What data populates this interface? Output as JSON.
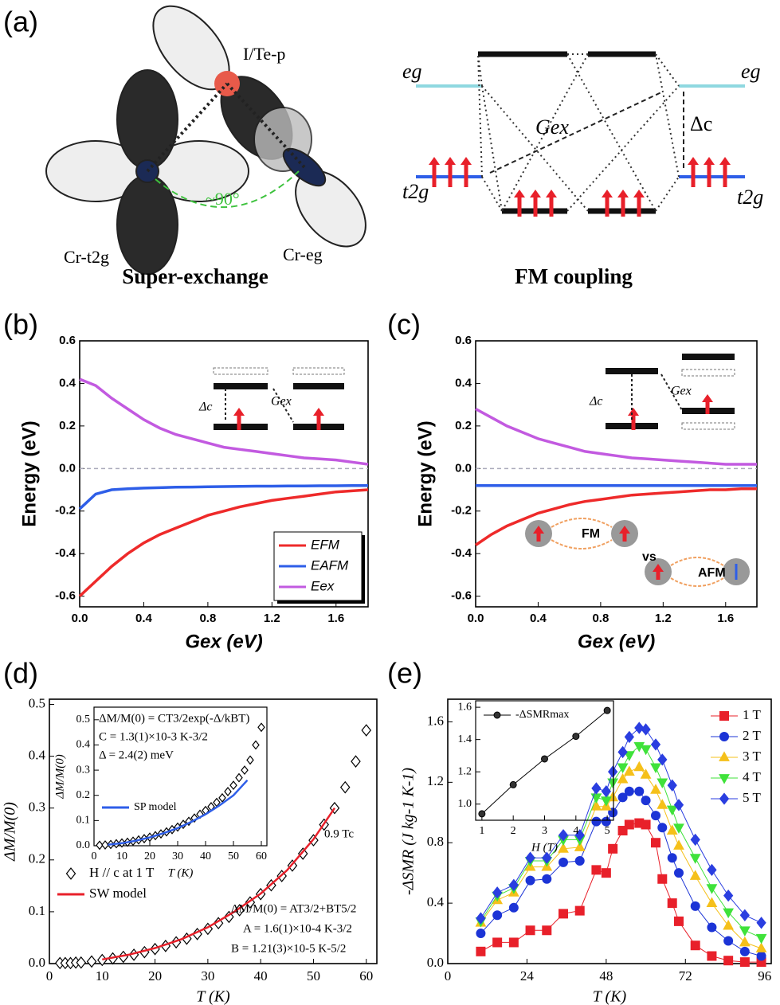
{
  "panel_labels": [
    "(a)",
    "(b)",
    "(c)",
    "(d)",
    "(e)"
  ],
  "diagram": {
    "left": {
      "orbital_p": "I/Te-p",
      "cr_t2g": "Cr-t2g",
      "cr_eg": "Cr-eg",
      "angle": "~90°",
      "title": "Super-exchange"
    },
    "right": {
      "eg_left": "eg",
      "eg_right": "eg",
      "t2g_left": "t2g",
      "t2g_right": "t2g",
      "gex": "Gex",
      "delta": "Δc",
      "title": "FM coupling"
    }
  },
  "chart_data": [
    {
      "type": "line",
      "xlabel": "Gex (eV)",
      "ylabel": "Energy (eV)",
      "xlim": [
        0,
        1.8
      ],
      "ylim": [
        -0.65,
        0.6
      ],
      "xticks": [
        {
          "value": 0,
          "label": "0.0"
        },
        0.4,
        0.8,
        1.2,
        1.6
      ],
      "yticks": [
        -0.6,
        -0.4,
        -0.2,
        {
          "value": 0,
          "label": "0.0"
        },
        0.2,
        0.4,
        0.6
      ],
      "zero_line": true,
      "legend": "lower right",
      "annotations": [
        "Δc",
        "Gex"
      ],
      "x": [
        0,
        0.1,
        0.2,
        0.3,
        0.4,
        0.5,
        0.6,
        0.7,
        0.8,
        0.9,
        1.0,
        1.1,
        1.2,
        1.3,
        1.4,
        1.5,
        1.6,
        1.7,
        1.8
      ],
      "series": [
        {
          "name": "EFM",
          "color": "#ee2a2a",
          "line": true,
          "values": [
            -0.6,
            -0.53,
            -0.46,
            -0.4,
            -0.35,
            -0.31,
            -0.28,
            -0.25,
            -0.22,
            -0.2,
            -0.18,
            -0.165,
            -0.15,
            -0.14,
            -0.13,
            -0.12,
            -0.11,
            -0.105,
            -0.1
          ]
        },
        {
          "name": "EAFM",
          "color": "#2e5ee8",
          "line": true,
          "values": [
            -0.19,
            -0.12,
            -0.1,
            -0.095,
            -0.092,
            -0.09,
            -0.088,
            -0.087,
            -0.086,
            -0.085,
            -0.084,
            -0.083,
            -0.083,
            -0.082,
            -0.082,
            -0.081,
            -0.081,
            -0.08,
            -0.08
          ]
        },
        {
          "name": "Eex",
          "color": "#c25ae0",
          "line": true,
          "values": [
            0.42,
            0.39,
            0.33,
            0.28,
            0.23,
            0.19,
            0.16,
            0.14,
            0.12,
            0.1,
            0.09,
            0.08,
            0.07,
            0.06,
            0.05,
            0.045,
            0.04,
            0.03,
            0.02
          ]
        }
      ]
    },
    {
      "type": "line",
      "xlabel": "Gex (eV)",
      "ylabel": "Energy (eV)",
      "xlim": [
        0,
        1.8
      ],
      "ylim": [
        -0.65,
        0.6
      ],
      "xticks": [
        {
          "value": 0,
          "label": "0.0"
        },
        0.4,
        0.8,
        1.2,
        1.6
      ],
      "yticks": [
        -0.6,
        -0.4,
        -0.2,
        {
          "value": 0,
          "label": "0.0"
        },
        0.2,
        0.4,
        0.6
      ],
      "zero_line": true,
      "annotations": [
        "Δc",
        "Gex",
        "FM",
        "vs",
        "AFM"
      ],
      "x": [
        0,
        0.1,
        0.2,
        0.3,
        0.4,
        0.5,
        0.6,
        0.7,
        0.8,
        0.9,
        1.0,
        1.1,
        1.2,
        1.3,
        1.4,
        1.5,
        1.6,
        1.7,
        1.8
      ],
      "series": [
        {
          "color": "#ee2a2a",
          "line": true,
          "values": [
            -0.36,
            -0.31,
            -0.27,
            -0.24,
            -0.21,
            -0.19,
            -0.17,
            -0.155,
            -0.145,
            -0.135,
            -0.125,
            -0.12,
            -0.115,
            -0.11,
            -0.105,
            -0.1,
            -0.1,
            -0.095,
            -0.095
          ]
        },
        {
          "color": "#2e5ee8",
          "line": true,
          "values": [
            -0.08,
            -0.08,
            -0.08,
            -0.08,
            -0.08,
            -0.08,
            -0.08,
            -0.08,
            -0.08,
            -0.08,
            -0.08,
            -0.08,
            -0.08,
            -0.08,
            -0.08,
            -0.08,
            -0.08,
            -0.08,
            -0.08
          ]
        },
        {
          "color": "#c25ae0",
          "line": true,
          "values": [
            0.28,
            0.24,
            0.2,
            0.17,
            0.14,
            0.12,
            0.1,
            0.08,
            0.07,
            0.06,
            0.05,
            0.045,
            0.04,
            0.035,
            0.03,
            0.025,
            0.02,
            0.02,
            0.02
          ]
        }
      ]
    },
    {
      "type": "scatter",
      "xlabel": "T (K)",
      "ylabel": "ΔM/M(0)",
      "xlim": [
        0,
        62
      ],
      "ylim": [
        0,
        0.51
      ],
      "xticks": [
        0,
        10,
        20,
        30,
        40,
        50,
        60
      ],
      "yticks": [
        {
          "value": 0,
          "label": "0.0"
        },
        0.1,
        0.2,
        0.3,
        0.4,
        0.5
      ],
      "legend": "lower left",
      "annotations": [
        "0.9 Tc",
        "ΔM/M(0) = AT3/2+BT5/2",
        "A = 1.6(1)×10-4 K-3/2",
        "B = 1.21(3)×10-5 K-5/2"
      ],
      "series": [
        {
          "name": "H // c at 1 T",
          "color": "#000000",
          "marker": "diamond",
          "open": true,
          "x": [
            2,
            3,
            4,
            5,
            6,
            8,
            10,
            12,
            14,
            16,
            18,
            20,
            22,
            24,
            26,
            28,
            30,
            32,
            34,
            36,
            38,
            40,
            42,
            44,
            46,
            48,
            50,
            52,
            54,
            56,
            58,
            60
          ],
          "values": [
            0.001,
            0.001,
            0.001,
            0.002,
            0.002,
            0.004,
            0.007,
            0.01,
            0.013,
            0.017,
            0.022,
            0.028,
            0.034,
            0.041,
            0.048,
            0.057,
            0.067,
            0.078,
            0.09,
            0.103,
            0.118,
            0.134,
            0.151,
            0.169,
            0.189,
            0.212,
            0.238,
            0.268,
            0.3,
            0.34,
            0.39,
            0.45
          ]
        },
        {
          "name": "SW model",
          "color": "#e8202a",
          "line": true,
          "x": [
            10,
            15,
            20,
            25,
            30,
            35,
            40,
            45,
            50,
            54
          ],
          "values": [
            0.008,
            0.017,
            0.03,
            0.047,
            0.07,
            0.1,
            0.135,
            0.18,
            0.24,
            0.3
          ]
        }
      ]
    },
    {
      "type": "scatter",
      "xlabel": "T (K)",
      "ylabel": "ΔM/M(0)",
      "xlim": [
        0,
        62
      ],
      "ylim": [
        0,
        0.55
      ],
      "xticks": [
        0,
        10,
        20,
        30,
        40,
        50,
        60
      ],
      "yticks": [
        {
          "value": 0,
          "label": "0.0"
        },
        0.1,
        0.2,
        0.3,
        0.4,
        0.5
      ],
      "legend": "center left",
      "annotations": [
        "ΔM/M(0) = CT3/2exp(-Δ/kBT)",
        "C = 1.3(1)×10-3 K-3/2",
        "Δ = 2.4(2) meV"
      ],
      "series": [
        {
          "color": "#000000",
          "marker": "diamond",
          "open": true,
          "x": [
            2,
            4,
            6,
            8,
            10,
            12,
            14,
            16,
            18,
            20,
            22,
            24,
            26,
            28,
            30,
            32,
            34,
            36,
            38,
            40,
            42,
            44,
            46,
            48,
            50,
            52,
            54,
            56,
            58,
            60
          ],
          "values": [
            0.002,
            0.003,
            0.005,
            0.008,
            0.011,
            0.014,
            0.018,
            0.023,
            0.028,
            0.034,
            0.04,
            0.047,
            0.055,
            0.064,
            0.074,
            0.085,
            0.097,
            0.11,
            0.125,
            0.14,
            0.155,
            0.172,
            0.19,
            0.215,
            0.24,
            0.27,
            0.3,
            0.34,
            0.4,
            0.47
          ]
        },
        {
          "name": "SP model",
          "color": "#2e5ee8",
          "line": true,
          "x": [
            5,
            10,
            15,
            20,
            25,
            30,
            35,
            40,
            45,
            50,
            55
          ],
          "values": [
            0.004,
            0.01,
            0.02,
            0.033,
            0.05,
            0.07,
            0.095,
            0.125,
            0.16,
            0.2,
            0.26
          ]
        }
      ]
    },
    {
      "type": "scatter",
      "xlabel": "T (K)",
      "ylabel": "-ΔSMR (J kg-1 K-1)",
      "xlim": [
        0,
        98
      ],
      "ylim": [
        0,
        1.75
      ],
      "xticks": [
        0,
        24,
        48,
        72,
        96
      ],
      "yticks": [
        {
          "value": 0,
          "label": "0.0"
        },
        0.4,
        0.8,
        1.2,
        1.6
      ],
      "legend": "upper right",
      "x": [
        10,
        15,
        20,
        25,
        30,
        35,
        40,
        45,
        48,
        50,
        53,
        55,
        58,
        60,
        63,
        65,
        68,
        70,
        75,
        80,
        85,
        90,
        95
      ],
      "series": [
        {
          "name": "1 T",
          "color": "#e8202a",
          "marker": "square",
          "line": true,
          "values": [
            0.08,
            0.14,
            0.14,
            0.22,
            0.22,
            0.33,
            0.35,
            0.62,
            0.6,
            0.76,
            0.88,
            0.92,
            0.93,
            0.92,
            0.8,
            0.56,
            0.4,
            0.28,
            0.12,
            0.05,
            0.02,
            0.01,
            0.01
          ]
        },
        {
          "name": "2 T",
          "color": "#1c34d6",
          "marker": "circle",
          "line": true,
          "values": [
            0.2,
            0.32,
            0.37,
            0.55,
            0.56,
            0.67,
            0.68,
            0.94,
            0.94,
            1.0,
            1.1,
            1.14,
            1.14,
            1.08,
            0.98,
            0.9,
            0.7,
            0.6,
            0.38,
            0.24,
            0.15,
            0.08,
            0.05
          ]
        },
        {
          "name": "3 T",
          "color": "#f5c01a",
          "marker": "triangle",
          "line": true,
          "values": [
            0.27,
            0.42,
            0.47,
            0.64,
            0.64,
            0.76,
            0.77,
            1.04,
            1.04,
            1.1,
            1.22,
            1.27,
            1.3,
            1.25,
            1.15,
            1.05,
            0.88,
            0.78,
            0.58,
            0.4,
            0.25,
            0.14,
            0.1
          ]
        },
        {
          "name": "4 T",
          "color": "#3fe23a",
          "marker": "triangle-down",
          "line": true,
          "values": [
            0.28,
            0.45,
            0.5,
            0.68,
            0.68,
            0.82,
            0.82,
            1.1,
            1.08,
            1.2,
            1.3,
            1.38,
            1.44,
            1.42,
            1.3,
            1.2,
            1.02,
            0.9,
            0.7,
            0.5,
            0.34,
            0.22,
            0.17
          ]
        },
        {
          "name": "5 T",
          "color": "#2a3ee0",
          "marker": "diamond",
          "line": true,
          "values": [
            0.3,
            0.47,
            0.52,
            0.7,
            0.7,
            0.85,
            0.85,
            1.16,
            1.14,
            1.27,
            1.4,
            1.5,
            1.56,
            1.55,
            1.45,
            1.35,
            1.18,
            1.05,
            0.82,
            0.62,
            0.45,
            0.32,
            0.27
          ]
        }
      ]
    },
    {
      "type": "scatter",
      "xlabel": "H (T)",
      "xlim": [
        0.8,
        5.2
      ],
      "ylim": [
        0.9,
        1.64
      ],
      "xticks": [
        1,
        2,
        3,
        4,
        5
      ],
      "yticks": [
        {
          "value": 1,
          "label": "1.0"
        },
        1.2,
        1.4,
        1.6
      ],
      "legend": "upper left",
      "series": [
        {
          "name": "-ΔSMRmax",
          "color": "#000000",
          "marker": "ball",
          "line": true,
          "x": [
            1,
            2,
            3,
            4,
            5
          ],
          "values": [
            0.94,
            1.12,
            1.28,
            1.42,
            1.58
          ]
        }
      ]
    }
  ]
}
